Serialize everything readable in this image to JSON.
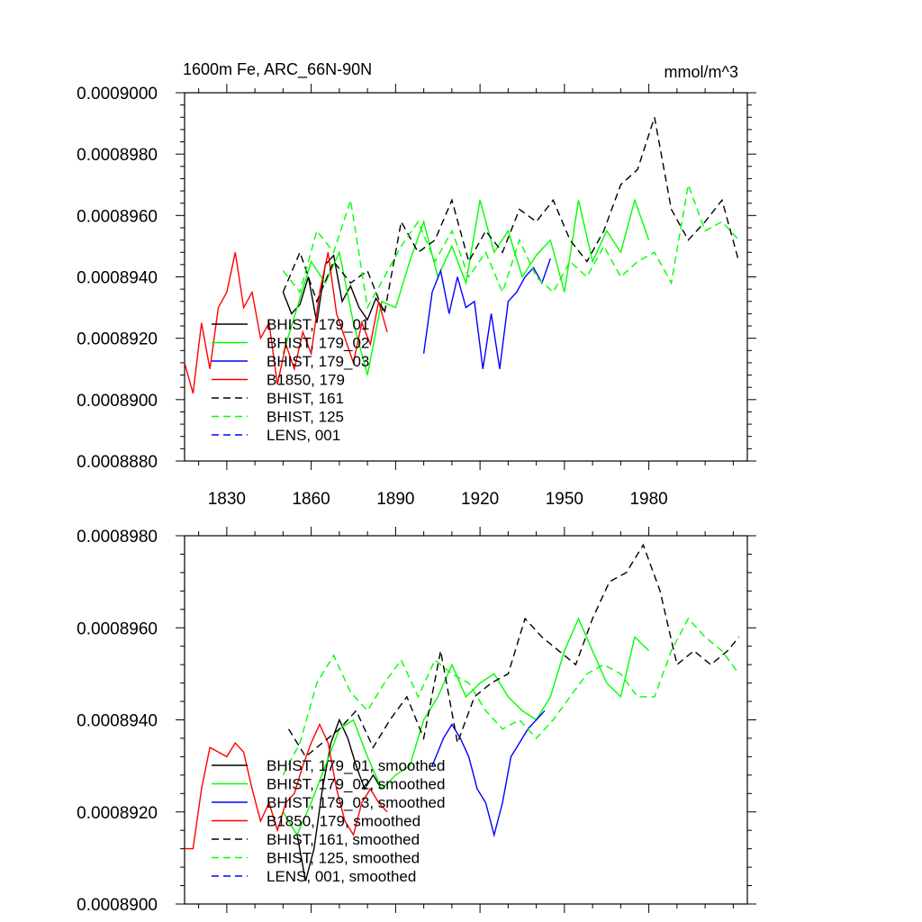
{
  "chart_data": [
    {
      "type": "line",
      "title": "1600m Fe, ARC_66N-90N",
      "units": "mmol/m^3",
      "xlim": [
        1815,
        2015
      ],
      "ylim": [
        0.000888,
        0.0009
      ],
      "xticks": [
        1830,
        1860,
        1890,
        1920,
        1950,
        1980
      ],
      "xtick_labels": [
        "1830",
        "1860",
        "1890",
        "1920",
        "1950",
        "1980"
      ],
      "yticks": [
        0.000888,
        0.00089,
        0.000892,
        0.000894,
        0.000896,
        0.000898,
        0.0009
      ],
      "ytick_labels": [
        "0.0008880",
        "0.0008900",
        "0.0008920",
        "0.0008940",
        "0.0008960",
        "0.0008980",
        "0.0009000"
      ],
      "series": [
        {
          "name": "BHIST, 179_01",
          "color": "#000000",
          "dash": "solid",
          "x": [
            1850,
            1853,
            1856,
            1859,
            1862,
            1865,
            1868,
            1871,
            1874,
            1877,
            1880,
            1883,
            1886
          ],
          "y": [
            0.0008935,
            0.0008928,
            0.0008931,
            0.000894,
            0.0008925,
            0.0008944,
            0.0008947,
            0.0008932,
            0.0008937,
            0.000893,
            0.0008926,
            0.0008933,
            0.0008929
          ]
        },
        {
          "name": "BHIST, 179_02",
          "color": "#00ff00",
          "dash": "solid",
          "x": [
            1850,
            1855,
            1860,
            1865,
            1870,
            1875,
            1880,
            1885,
            1890,
            1895,
            1900,
            1905,
            1910,
            1915,
            1920,
            1925,
            1930,
            1935,
            1940,
            1945,
            1950,
            1955,
            1960,
            1965,
            1970,
            1975,
            1980
          ],
          "y": [
            0.0008915,
            0.000893,
            0.0008945,
            0.0008938,
            0.0008948,
            0.0008925,
            0.0008908,
            0.0008932,
            0.000893,
            0.0008945,
            0.0008958,
            0.000894,
            0.000895,
            0.0008938,
            0.0008965,
            0.0008948,
            0.0008955,
            0.000894,
            0.0008947,
            0.0008952,
            0.0008935,
            0.0008965,
            0.0008945,
            0.0008955,
            0.0008948,
            0.0008965,
            0.0008952
          ]
        },
        {
          "name": "BHIST, 179_03",
          "color": "#0000ff",
          "dash": "solid",
          "x": [
            1900,
            1903,
            1906,
            1909,
            1912,
            1915,
            1918,
            1921,
            1924,
            1927,
            1930,
            1933,
            1936,
            1939,
            1942,
            1945
          ],
          "y": [
            0.0008915,
            0.0008935,
            0.0008942,
            0.0008928,
            0.000894,
            0.000893,
            0.0008932,
            0.000891,
            0.0008928,
            0.000891,
            0.0008932,
            0.0008935,
            0.000894,
            0.0008943,
            0.0008938,
            0.0008946
          ]
        },
        {
          "name": "B1850, 179",
          "color": "#ff0000",
          "dash": "solid",
          "x": [
            1815,
            1818,
            1821,
            1824,
            1827,
            1830,
            1833,
            1836,
            1839,
            1842,
            1845,
            1848,
            1851,
            1854,
            1857,
            1860,
            1863,
            1866,
            1869,
            1872,
            1875,
            1878,
            1881,
            1884,
            1887
          ],
          "y": [
            0.0008912,
            0.0008902,
            0.0008925,
            0.000891,
            0.000893,
            0.0008935,
            0.0008948,
            0.000893,
            0.0008935,
            0.000892,
            0.0008925,
            0.0008905,
            0.0008918,
            0.000891,
            0.0008922,
            0.0008915,
            0.0008935,
            0.0008948,
            0.0008928,
            0.000892,
            0.0008912,
            0.0008925,
            0.0008918,
            0.0008932,
            0.0008922
          ]
        },
        {
          "name": "BHIST, 161",
          "color": "#000000",
          "dash": "dashed",
          "x": [
            1850,
            1856,
            1862,
            1868,
            1874,
            1880,
            1886,
            1892,
            1898,
            1904,
            1910,
            1916,
            1922,
            1928,
            1934,
            1940,
            1946,
            1952,
            1958,
            1964,
            1970,
            1976,
            1982,
            1988,
            1994,
            2000,
            2006,
            2012
          ],
          "y": [
            0.0008935,
            0.0008948,
            0.0008932,
            0.0008945,
            0.0008938,
            0.0008942,
            0.0008928,
            0.0008958,
            0.0008948,
            0.0008952,
            0.0008965,
            0.0008945,
            0.0008955,
            0.0008948,
            0.0008962,
            0.0008958,
            0.0008965,
            0.0008952,
            0.0008945,
            0.0008955,
            0.000897,
            0.0008975,
            0.0008992,
            0.0008962,
            0.0008952,
            0.0008958,
            0.0008965,
            0.0008945
          ]
        },
        {
          "name": "BHIST, 125",
          "color": "#00ff00",
          "dash": "dashed",
          "x": [
            1850,
            1856,
            1862,
            1868,
            1874,
            1880,
            1886,
            1892,
            1898,
            1904,
            1910,
            1916,
            1922,
            1928,
            1934,
            1940,
            1946,
            1952,
            1958,
            1964,
            1970,
            1976,
            1982,
            1988,
            1994,
            2000,
            2006,
            2012
          ],
          "y": [
            0.0008942,
            0.0008935,
            0.0008955,
            0.0008948,
            0.0008965,
            0.000893,
            0.000894,
            0.000895,
            0.0008958,
            0.0008945,
            0.0008955,
            0.000894,
            0.0008948,
            0.0008935,
            0.0008952,
            0.000894,
            0.0008935,
            0.0008945,
            0.000894,
            0.000895,
            0.000894,
            0.0008945,
            0.0008948,
            0.0008938,
            0.000897,
            0.0008955,
            0.0008958,
            0.0008952
          ]
        },
        {
          "name": "LENS, 001",
          "color": "#0000ff",
          "dash": "dashed",
          "x": [],
          "y": []
        }
      ]
    },
    {
      "type": "line",
      "title": "",
      "xlim": [
        1815,
        2015
      ],
      "ylim": [
        0.00089,
        0.000898
      ],
      "xticks": [
        1830,
        1860,
        1890,
        1920,
        1950,
        1980
      ],
      "xtick_labels": [],
      "yticks": [
        0.00089,
        0.000892,
        0.000894,
        0.000896,
        0.000898
      ],
      "ytick_labels": [
        "0.0008900",
        "0.0008920",
        "0.0008940",
        "0.0008960",
        "0.0008980"
      ],
      "series": [
        {
          "name": "BHIST, 179_01, smoothed",
          "color": "#000000",
          "dash": "solid",
          "x": [
            1855,
            1858,
            1861,
            1864,
            1867,
            1870,
            1873,
            1876,
            1879,
            1882,
            1885
          ],
          "y": [
            0.0008915,
            0.0008905,
            0.0008912,
            0.0008925,
            0.0008935,
            0.000894,
            0.0008936,
            0.000893,
            0.0008925,
            0.0008928,
            0.0008925
          ]
        },
        {
          "name": "BHIST, 179_02, smoothed",
          "color": "#00ff00",
          "dash": "solid",
          "x": [
            1850,
            1855,
            1860,
            1865,
            1870,
            1875,
            1880,
            1885,
            1890,
            1895,
            1900,
            1905,
            1910,
            1915,
            1920,
            1925,
            1930,
            1935,
            1940,
            1945,
            1950,
            1955,
            1960,
            1965,
            1970,
            1975,
            1980
          ],
          "y": [
            0.000892,
            0.0008915,
            0.0008922,
            0.000893,
            0.0008938,
            0.000894,
            0.0008932,
            0.0008925,
            0.0008928,
            0.000893,
            0.000894,
            0.0008945,
            0.0008952,
            0.0008945,
            0.0008948,
            0.000895,
            0.0008945,
            0.0008942,
            0.000894,
            0.0008945,
            0.0008955,
            0.0008962,
            0.0008955,
            0.0008948,
            0.0008945,
            0.0008958,
            0.0008955
          ]
        },
        {
          "name": "BHIST, 179_03, smoothed",
          "color": "#0000ff",
          "dash": "solid",
          "x": [
            1903,
            1907,
            1910,
            1913,
            1916,
            1919,
            1922,
            1925,
            1928,
            1931,
            1934,
            1937,
            1940,
            1943
          ],
          "y": [
            0.000893,
            0.0008936,
            0.0008939,
            0.0008936,
            0.0008932,
            0.0008925,
            0.0008922,
            0.0008915,
            0.0008922,
            0.0008932,
            0.0008935,
            0.0008938,
            0.000894,
            0.0008942
          ]
        },
        {
          "name": "B1850, 179, smoothed",
          "color": "#ff0000",
          "dash": "solid",
          "x": [
            1815,
            1818,
            1821,
            1824,
            1827,
            1830,
            1833,
            1836,
            1839,
            1842,
            1845,
            1848,
            1851,
            1854,
            1857,
            1860,
            1863,
            1866,
            1869,
            1872,
            1875,
            1878,
            1881,
            1884,
            1887
          ],
          "y": [
            0.0008912,
            0.0008912,
            0.0008925,
            0.0008934,
            0.0008933,
            0.0008932,
            0.0008935,
            0.0008933,
            0.0008925,
            0.0008918,
            0.0008922,
            0.0008916,
            0.0008922,
            0.0008924,
            0.000893,
            0.0008935,
            0.0008939,
            0.0008935,
            0.0008925,
            0.0008918,
            0.0008915,
            0.0008922,
            0.0008925,
            0.0008922,
            0.000892
          ]
        },
        {
          "name": "BHIST, 161, smoothed",
          "color": "#000000",
          "dash": "dashed",
          "x": [
            1852,
            1858,
            1864,
            1870,
            1876,
            1882,
            1888,
            1894,
            1900,
            1906,
            1912,
            1918,
            1924,
            1930,
            1936,
            1942,
            1948,
            1954,
            1960,
            1966,
            1972,
            1978,
            1984,
            1990,
            1996,
            2002,
            2008,
            2012
          ],
          "y": [
            0.0008938,
            0.0008932,
            0.0008935,
            0.0008938,
            0.0008942,
            0.0008934,
            0.000894,
            0.0008945,
            0.0008936,
            0.0008955,
            0.0008935,
            0.0008945,
            0.0008948,
            0.000895,
            0.0008962,
            0.0008958,
            0.0008955,
            0.0008952,
            0.0008962,
            0.000897,
            0.0008972,
            0.0008978,
            0.0008968,
            0.0008952,
            0.0008955,
            0.0008952,
            0.0008955,
            0.0008958
          ]
        },
        {
          "name": "BHIST, 125, smoothed",
          "color": "#00ff00",
          "dash": "dashed",
          "x": [
            1850,
            1856,
            1862,
            1868,
            1874,
            1880,
            1886,
            1892,
            1898,
            1904,
            1910,
            1916,
            1922,
            1928,
            1934,
            1940,
            1946,
            1952,
            1958,
            1964,
            1970,
            1976,
            1982,
            1988,
            1994,
            2000,
            2006,
            2012
          ],
          "y": [
            0.0008928,
            0.0008935,
            0.0008948,
            0.0008954,
            0.0008946,
            0.0008942,
            0.0008948,
            0.0008953,
            0.0008945,
            0.0008953,
            0.000895,
            0.0008948,
            0.0008942,
            0.0008938,
            0.000894,
            0.0008936,
            0.000894,
            0.0008945,
            0.000895,
            0.0008952,
            0.000895,
            0.0008945,
            0.0008945,
            0.0008955,
            0.0008962,
            0.0008958,
            0.0008955,
            0.000895
          ]
        },
        {
          "name": "LENS, 001, smoothed",
          "color": "#0000ff",
          "dash": "dashed",
          "x": [],
          "y": []
        }
      ]
    }
  ]
}
